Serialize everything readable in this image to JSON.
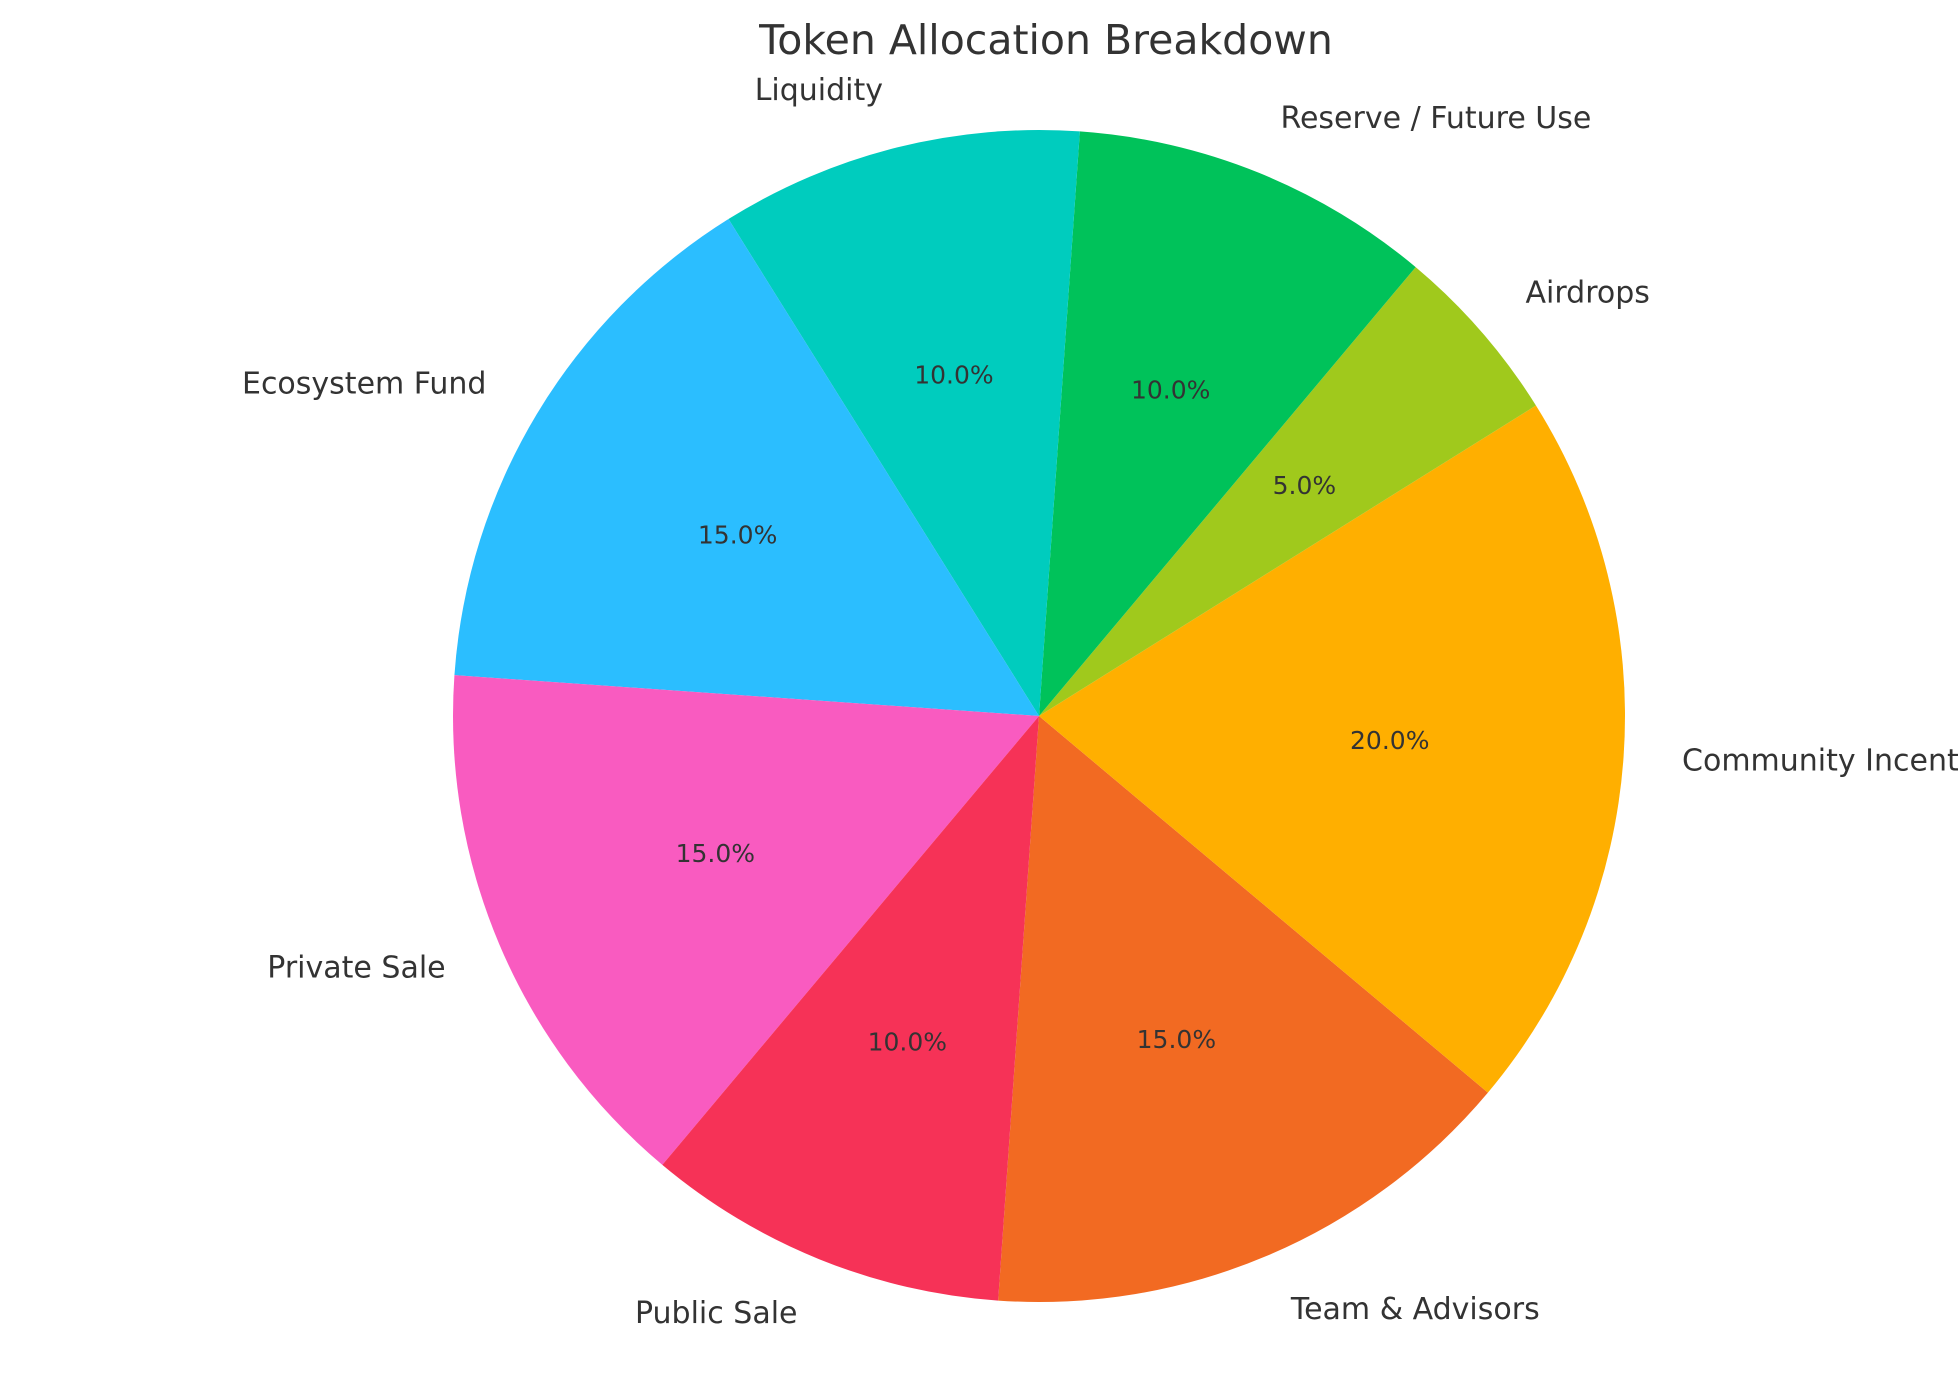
{
  "chart_data": {
    "type": "pie",
    "title": "Token Allocation Breakdown",
    "categories": [
      "Team & Advisors",
      "Community Incentives",
      "Airdrops",
      "Reserve / Future Use",
      "Liquidity",
      "Ecosystem Fund",
      "Private Sale",
      "Public Sale"
    ],
    "values": [
      15,
      20,
      5,
      10,
      10,
      15,
      15,
      10
    ],
    "value_labels": [
      "15.0%",
      "20.0%",
      "5.0%",
      "10.0%",
      "10.0%",
      "15.0%",
      "15.0%",
      "10.0%"
    ],
    "colors": [
      "#F26A22",
      "#FFAF00",
      "#A0C91C",
      "#00C25A",
      "#00CCBE",
      "#2BBEFF",
      "#F95BC0",
      "#F63257"
    ],
    "start_angle_deg": 266,
    "direction": "counterclockwise",
    "legend": "none"
  }
}
